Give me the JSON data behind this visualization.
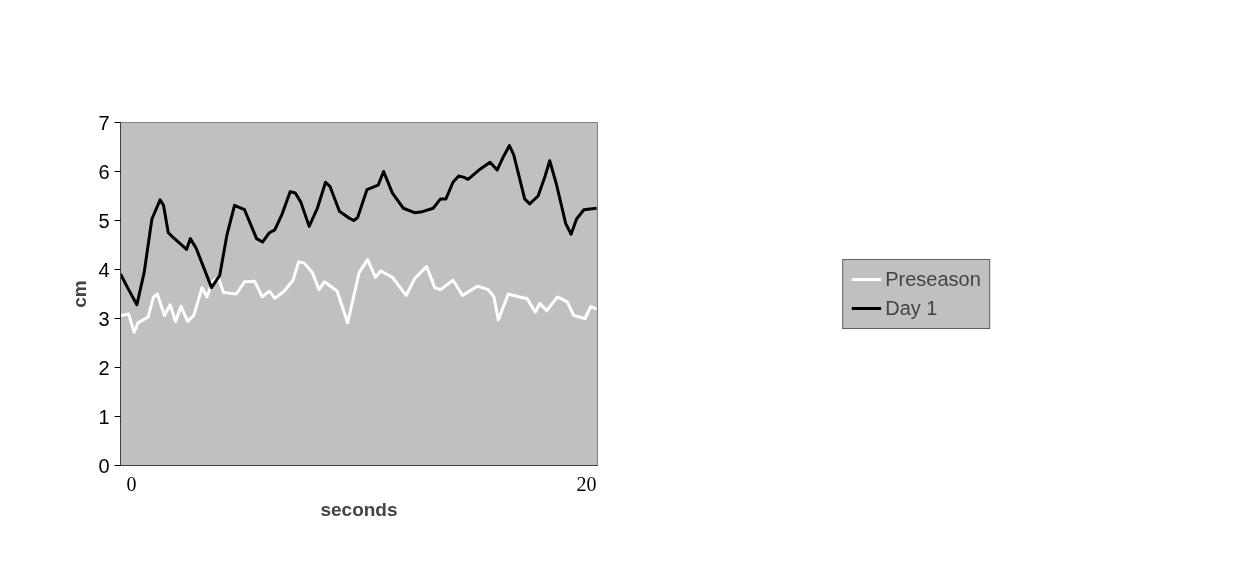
{
  "chart_data": {
    "type": "line",
    "xlabel": "seconds",
    "ylabel": "cm",
    "xlim": [
      -0.48,
      20.48
    ],
    "xticks": [
      0,
      20
    ],
    "ylim": [
      0,
      7
    ],
    "yticks": [
      0,
      1,
      2,
      3,
      4,
      5,
      6,
      7
    ],
    "grid": false,
    "legend": "right",
    "line_style": "solid",
    "marker": "none",
    "series": [
      {
        "name": "Preseason",
        "color": "#ffffff",
        "x": [
          -0.48,
          -0.12,
          0.12,
          0.29,
          0.73,
          0.97,
          1.14,
          1.45,
          1.7,
          1.94,
          2.18,
          2.47,
          2.74,
          3.1,
          3.32,
          3.56,
          3.81,
          4.05,
          4.61,
          4.97,
          5.41,
          5.75,
          6.06,
          6.3,
          6.72,
          7.1,
          7.35,
          7.59,
          7.95,
          8.24,
          8.48,
          9.04,
          9.5,
          10.01,
          10.38,
          10.72,
          10.96,
          11.47,
          12.07,
          12.44,
          12.97,
          13.33,
          13.58,
          14.13,
          14.55,
          15.2,
          15.68,
          15.93,
          16.12,
          16.56,
          17.04,
          17.38,
          17.75,
          17.94,
          18.25,
          18.72,
          19.15,
          19.44,
          19.93,
          20.19,
          20.44
        ],
        "values": [
          3.06,
          3.09,
          2.72,
          2.91,
          3.03,
          3.44,
          3.5,
          3.06,
          3.28,
          2.94,
          3.25,
          2.94,
          3.06,
          3.63,
          3.44,
          3.75,
          3.84,
          3.53,
          3.5,
          3.75,
          3.76,
          3.44,
          3.56,
          3.41,
          3.56,
          3.78,
          4.16,
          4.13,
          3.94,
          3.59,
          3.75,
          3.56,
          2.91,
          3.94,
          4.2,
          3.84,
          3.97,
          3.84,
          3.47,
          3.81,
          4.06,
          3.63,
          3.59,
          3.78,
          3.47,
          3.66,
          3.59,
          3.44,
          2.97,
          3.5,
          3.44,
          3.41,
          3.13,
          3.31,
          3.16,
          3.44,
          3.34,
          3.06,
          3.0,
          3.25,
          3.19
        ]
      },
      {
        "name": "Day 1",
        "color": "#000000",
        "x": [
          -0.48,
          -0.17,
          0.24,
          0.56,
          0.9,
          1.26,
          1.41,
          1.62,
          1.82,
          2.35,
          2.42,
          2.59,
          2.84,
          3.52,
          3.88,
          4.19,
          4.53,
          4.97,
          5.5,
          5.76,
          6.06,
          6.3,
          6.62,
          6.98,
          7.2,
          7.44,
          7.81,
          8.17,
          8.53,
          8.73,
          9.14,
          9.53,
          9.77,
          9.94,
          10.35,
          10.84,
          11.08,
          11.47,
          11.95,
          12.44,
          12.78,
          13.26,
          13.58,
          13.82,
          14.13,
          14.38,
          14.62,
          14.79,
          15.27,
          15.76,
          16.07,
          16.32,
          16.61,
          16.8,
          17.28,
          17.5,
          17.87,
          18.18,
          18.38,
          18.67,
          19.08,
          19.32,
          19.56,
          19.88,
          20.44
        ],
        "values": [
          3.91,
          3.63,
          3.28,
          3.94,
          5.03,
          5.42,
          5.31,
          4.75,
          4.66,
          4.44,
          4.41,
          4.63,
          4.44,
          3.63,
          3.88,
          4.69,
          5.31,
          5.22,
          4.63,
          4.56,
          4.75,
          4.81,
          5.13,
          5.59,
          5.56,
          5.38,
          4.88,
          5.25,
          5.78,
          5.69,
          5.19,
          5.06,
          5.0,
          5.06,
          5.63,
          5.72,
          6.0,
          5.56,
          5.25,
          5.16,
          5.18,
          5.25,
          5.44,
          5.44,
          5.78,
          5.91,
          5.88,
          5.84,
          6.03,
          6.19,
          6.03,
          6.28,
          6.53,
          6.34,
          5.44,
          5.34,
          5.5,
          5.91,
          6.22,
          5.75,
          4.94,
          4.72,
          5.03,
          5.22,
          5.25
        ]
      }
    ]
  }
}
